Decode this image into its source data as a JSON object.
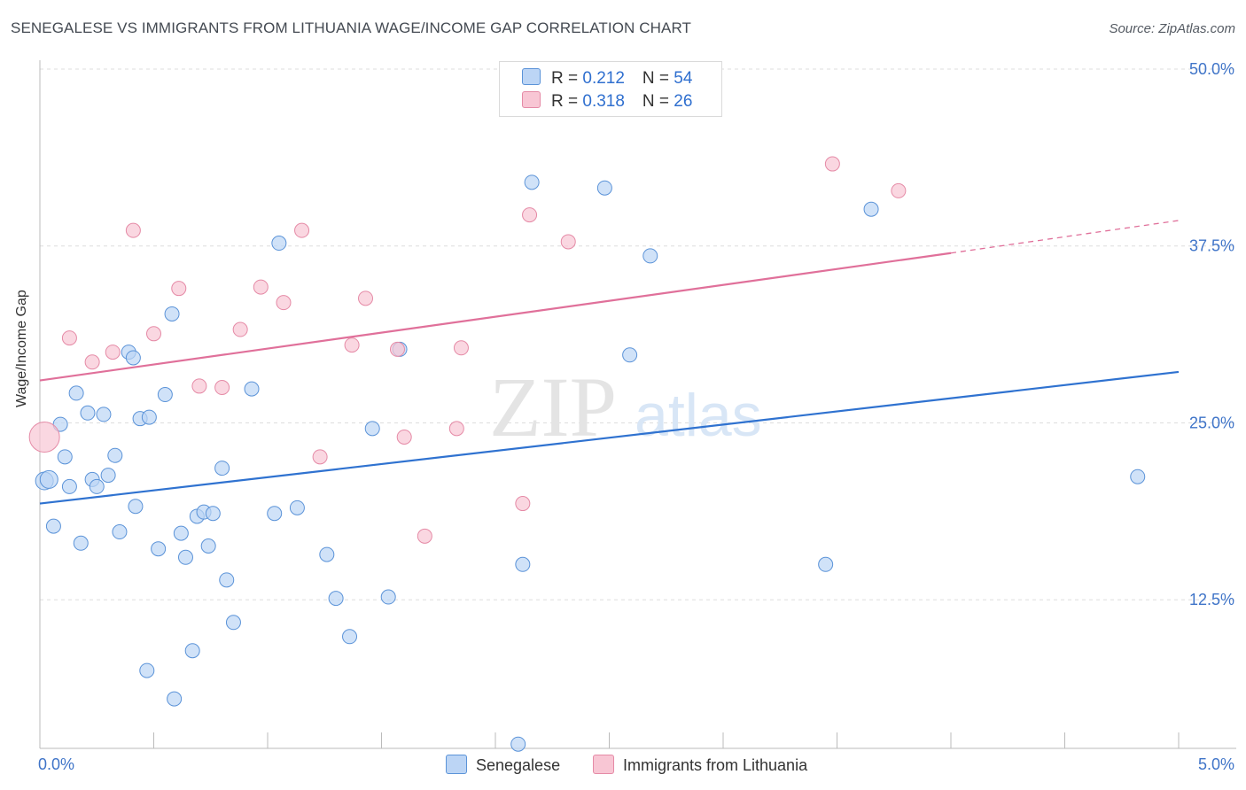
{
  "title": "SENEGALESE VS IMMIGRANTS FROM LITHUANIA WAGE/INCOME GAP CORRELATION CHART",
  "source": "Source: ZipAtlas.com",
  "watermark": {
    "zip": "ZIP",
    "atlas": "atlas"
  },
  "colors": {
    "blue_fill": "#bcd5f5",
    "blue_stroke": "#5b93d8",
    "blue_line": "#2f72d0",
    "pink_fill": "#f8c6d4",
    "pink_stroke": "#e58aa6",
    "pink_line": "#e0709a",
    "axis_label": "#3f74c8",
    "grid": "#dddddd"
  },
  "legend": {
    "rows": [
      {
        "r_label": "R = ",
        "r_value": "0.212",
        "n_label": "N = ",
        "n_value": "54",
        "series": "blue"
      },
      {
        "r_label": "R = ",
        "r_value": "0.318",
        "n_label": "N = ",
        "n_value": "26",
        "series": "pink"
      }
    ],
    "bottom": [
      {
        "label": "Senegalese",
        "series": "blue"
      },
      {
        "label": "Immigrants from Lithuania",
        "series": "pink"
      }
    ]
  },
  "chart_data": {
    "type": "scatter",
    "title": "SENEGALESE VS IMMIGRANTS FROM LITHUANIA WAGE/INCOME GAP CORRELATION CHART",
    "xlabel": "",
    "ylabel": "Wage/Income Gap",
    "xlim": [
      0,
      5.0
    ],
    "ylim": [
      2.0,
      50.0
    ],
    "x_tick_labels": [
      "0.0%",
      "5.0%"
    ],
    "y_ticks": [
      12.5,
      25.0,
      37.5,
      50.0
    ],
    "y_tick_labels": [
      "12.5%",
      "25.0%",
      "37.5%",
      "50.0%"
    ],
    "grid": true,
    "series": [
      {
        "name": "Senegalese",
        "color": "blue",
        "points": [
          [
            0.02,
            20.9
          ],
          [
            0.04,
            21.0
          ],
          [
            0.06,
            17.7
          ],
          [
            0.09,
            24.9
          ],
          [
            0.11,
            22.6
          ],
          [
            0.13,
            20.5
          ],
          [
            0.16,
            27.1
          ],
          [
            0.18,
            16.5
          ],
          [
            0.21,
            25.7
          ],
          [
            0.23,
            21.0
          ],
          [
            0.25,
            20.5
          ],
          [
            0.28,
            25.6
          ],
          [
            0.3,
            21.3
          ],
          [
            0.33,
            22.7
          ],
          [
            0.35,
            17.3
          ],
          [
            0.39,
            30.0
          ],
          [
            0.41,
            29.6
          ],
          [
            0.42,
            19.1
          ],
          [
            0.44,
            25.3
          ],
          [
            0.47,
            7.5
          ],
          [
            0.48,
            25.4
          ],
          [
            0.52,
            16.1
          ],
          [
            0.55,
            27.0
          ],
          [
            0.58,
            32.7
          ],
          [
            0.59,
            5.5
          ],
          [
            0.62,
            17.2
          ],
          [
            0.64,
            15.5
          ],
          [
            0.67,
            8.9
          ],
          [
            0.69,
            18.4
          ],
          [
            0.72,
            18.7
          ],
          [
            0.74,
            16.3
          ],
          [
            0.76,
            18.6
          ],
          [
            0.8,
            21.8
          ],
          [
            0.82,
            13.9
          ],
          [
            0.85,
            10.9
          ],
          [
            0.93,
            27.4
          ],
          [
            1.03,
            18.6
          ],
          [
            1.05,
            37.7
          ],
          [
            1.13,
            19.0
          ],
          [
            1.26,
            15.7
          ],
          [
            1.3,
            12.6
          ],
          [
            1.36,
            9.9
          ],
          [
            1.46,
            24.6
          ],
          [
            1.53,
            12.7
          ],
          [
            1.58,
            30.2
          ],
          [
            2.1,
            2.3
          ],
          [
            2.12,
            15.0
          ],
          [
            2.16,
            42.0
          ],
          [
            2.48,
            41.6
          ],
          [
            2.59,
            29.8
          ],
          [
            2.68,
            36.8
          ],
          [
            3.45,
            15.0
          ],
          [
            3.65,
            40.1
          ],
          [
            4.82,
            21.2
          ]
        ],
        "trend": {
          "x": [
            0.0,
            5.0
          ],
          "y": [
            19.3,
            28.6
          ]
        }
      },
      {
        "name": "Immigrants from Lithuania",
        "color": "pink",
        "points": [
          [
            0.02,
            24.0
          ],
          [
            0.13,
            31.0
          ],
          [
            0.23,
            29.3
          ],
          [
            0.32,
            30.0
          ],
          [
            0.41,
            38.6
          ],
          [
            0.5,
            31.3
          ],
          [
            0.61,
            34.5
          ],
          [
            0.7,
            27.6
          ],
          [
            0.8,
            27.5
          ],
          [
            0.88,
            31.6
          ],
          [
            0.97,
            34.6
          ],
          [
            1.07,
            33.5
          ],
          [
            1.15,
            38.6
          ],
          [
            1.23,
            22.6
          ],
          [
            1.37,
            30.5
          ],
          [
            1.43,
            33.8
          ],
          [
            1.57,
            30.2
          ],
          [
            1.6,
            24.0
          ],
          [
            1.69,
            17.0
          ],
          [
            1.83,
            24.6
          ],
          [
            1.85,
            30.3
          ],
          [
            2.12,
            19.3
          ],
          [
            2.15,
            39.7
          ],
          [
            2.32,
            37.8
          ],
          [
            3.48,
            43.3
          ],
          [
            3.77,
            41.4
          ]
        ],
        "trend": {
          "x": [
            0.0,
            4.0
          ],
          "y": [
            28.0,
            37.0
          ]
        },
        "trend_extension": {
          "x": [
            4.0,
            5.0
          ],
          "y": [
            37.0,
            39.3
          ]
        }
      }
    ]
  }
}
